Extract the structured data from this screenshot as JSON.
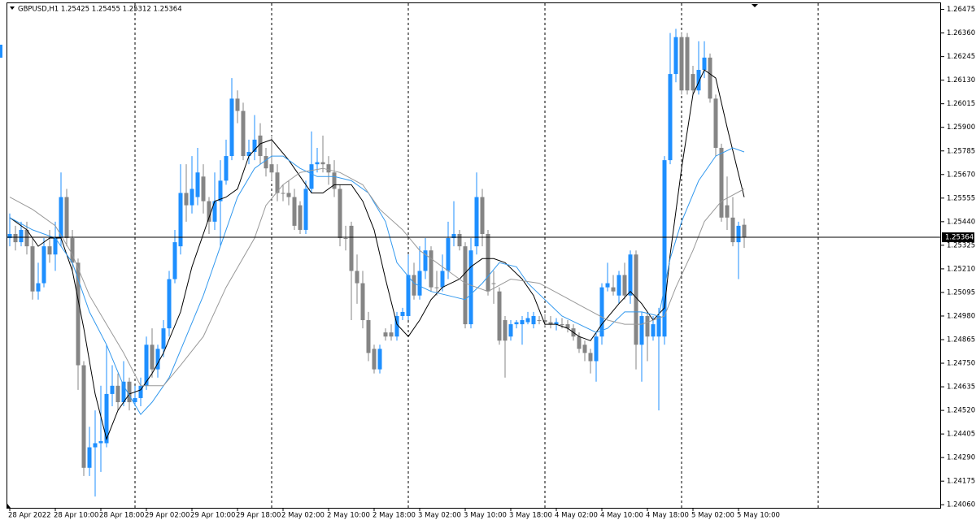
{
  "chart_data": {
    "type": "candlestick",
    "title": "GBPUSD,H1  1.25425 1.25455 1.25312 1.25364",
    "categories": [
      "28 Apr 2022",
      null,
      null,
      null,
      null,
      null,
      null,
      null,
      "28 Apr 10:00",
      null,
      null,
      null,
      null,
      null,
      null,
      null,
      "28 Apr 18:00",
      null,
      null,
      null,
      null,
      null,
      null,
      null,
      "29 Apr 02:00",
      null,
      null,
      null,
      null,
      null,
      null,
      null,
      "29 Apr 10:00",
      null,
      null,
      null,
      null,
      null,
      null,
      null,
      "29 Apr 18:00",
      null,
      null,
      null,
      null,
      null,
      null,
      null,
      "2 May 02:00",
      null,
      null,
      null,
      null,
      null,
      null,
      null,
      "2 May 10:00",
      null,
      null,
      null,
      null,
      null,
      null,
      null,
      "2 May 18:00",
      null,
      null,
      null,
      null,
      null,
      null,
      null,
      "3 May 02:00",
      null,
      null,
      null,
      null,
      null,
      null,
      null,
      "3 May 10:00",
      null,
      null,
      null,
      null,
      null,
      null,
      null,
      "3 May 18:00",
      null,
      null,
      null,
      null,
      null,
      null,
      null,
      "4 May 02:00",
      null,
      null,
      null,
      null,
      null,
      null,
      null,
      "4 May 10:00",
      null,
      null,
      null,
      null,
      null,
      null,
      null,
      "4 May 18:00",
      null,
      null,
      null,
      null,
      null,
      null,
      null,
      "5 May 02:00",
      null,
      null,
      null,
      null,
      null,
      null,
      null,
      "5 May 10:00",
      null
    ],
    "values": [
      [
        1.2536,
        1.2548,
        1.2532,
        1.2538
      ],
      [
        1.2538,
        1.2542,
        1.253,
        1.2534
      ],
      [
        1.2534,
        1.2544,
        1.2532,
        1.254
      ],
      [
        1.254,
        1.2544,
        1.2528,
        1.2532
      ],
      [
        1.2532,
        1.2536,
        1.2506,
        1.251
      ],
      [
        1.251,
        1.2524,
        1.2506,
        1.2514
      ],
      [
        1.2514,
        1.2536,
        1.2512,
        1.2532
      ],
      [
        1.2532,
        1.254,
        1.2524,
        1.2528
      ],
      [
        1.2528,
        1.2544,
        1.252,
        1.2536
      ],
      [
        1.2536,
        1.2568,
        1.2532,
        1.2556
      ],
      [
        1.2556,
        1.256,
        1.2532,
        1.2536
      ],
      [
        1.2536,
        1.254,
        1.252,
        1.2524
      ],
      [
        1.2524,
        1.2526,
        1.2462,
        1.2474
      ],
      [
        1.2474,
        1.2476,
        1.242,
        1.2424
      ],
      [
        1.2424,
        1.2444,
        1.242,
        1.2434
      ],
      [
        1.2434,
        1.2452,
        1.241,
        1.2436
      ],
      [
        1.2436,
        1.2464,
        1.2422,
        1.2437
      ],
      [
        1.2436,
        1.2484,
        1.2434,
        1.246
      ],
      [
        1.246,
        1.2474,
        1.2454,
        1.2464
      ],
      [
        1.2464,
        1.247,
        1.2452,
        1.2456
      ],
      [
        1.2456,
        1.2476,
        1.2454,
        1.2466
      ],
      [
        1.2466,
        1.2468,
        1.2452,
        1.2456
      ],
      [
        1.2456,
        1.2464,
        1.2454,
        1.2458
      ],
      [
        1.2458,
        1.2468,
        1.2454,
        1.2464
      ],
      [
        1.2464,
        1.2488,
        1.2462,
        1.2484
      ],
      [
        1.2484,
        1.2492,
        1.2468,
        1.2472
      ],
      [
        1.2472,
        1.2484,
        1.2468,
        1.2482
      ],
      [
        1.2482,
        1.2496,
        1.2478,
        1.2492
      ],
      [
        1.2492,
        1.252,
        1.2488,
        1.2516
      ],
      [
        1.2516,
        1.254,
        1.2514,
        1.2534
      ],
      [
        1.2532,
        1.2572,
        1.2528,
        1.2558
      ],
      [
        1.2558,
        1.2572,
        1.2544,
        1.2552
      ],
      [
        1.2552,
        1.2576,
        1.2548,
        1.256
      ],
      [
        1.2556,
        1.258,
        1.2552,
        1.2568
      ],
      [
        1.2566,
        1.2572,
        1.2548,
        1.2554
      ],
      [
        1.2554,
        1.2556,
        1.2538,
        1.2544
      ],
      [
        1.2544,
        1.2568,
        1.254,
        1.2554
      ],
      [
        1.2554,
        1.2574,
        1.2532,
        1.2564
      ],
      [
        1.2564,
        1.2584,
        1.2562,
        1.2576
      ],
      [
        1.2576,
        1.2614,
        1.2574,
        1.2604
      ],
      [
        1.2604,
        1.2608,
        1.2592,
        1.2598
      ],
      [
        1.2598,
        1.2602,
        1.2574,
        1.2576
      ],
      [
        1.2576,
        1.2584,
        1.2572,
        1.2578
      ],
      [
        1.2578,
        1.2596,
        1.2574,
        1.2584
      ],
      [
        1.2586,
        1.2592,
        1.2572,
        1.2576
      ],
      [
        1.2576,
        1.258,
        1.2566,
        1.257
      ],
      [
        1.2572,
        1.2586,
        1.2564,
        1.2568
      ],
      [
        1.2568,
        1.2572,
        1.2554,
        1.2558
      ],
      [
        1.2558,
        1.2562,
        1.2554,
        1.2558
      ],
      [
        1.2558,
        1.2564,
        1.2552,
        1.2556
      ],
      [
        1.2556,
        1.256,
        1.254,
        1.2542
      ],
      [
        1.2552,
        1.2554,
        1.2538,
        1.254
      ],
      [
        1.254,
        1.2564,
        1.2538,
        1.256
      ],
      [
        1.256,
        1.2588,
        1.2558,
        1.2572
      ],
      [
        1.2572,
        1.258,
        1.2568,
        1.2573
      ],
      [
        1.2573,
        1.2586,
        1.2568,
        1.2572
      ],
      [
        1.2572,
        1.2576,
        1.2562,
        1.2568
      ],
      [
        1.2568,
        1.2574,
        1.2556,
        1.256
      ],
      [
        1.256,
        1.2562,
        1.2532,
        1.2536
      ],
      [
        1.2536,
        1.2542,
        1.253,
        1.2536
      ],
      [
        1.2542,
        1.2544,
        1.2496,
        1.252
      ],
      [
        1.252,
        1.2528,
        1.2504,
        1.2514
      ],
      [
        1.2514,
        1.252,
        1.2492,
        1.2496
      ],
      [
        1.2496,
        1.25,
        1.2476,
        1.248
      ],
      [
        1.2482,
        1.2484,
        1.247,
        1.2472
      ],
      [
        1.2472,
        1.2484,
        1.247,
        1.2482
      ],
      [
        1.249,
        1.2492,
        1.2486,
        1.2488
      ],
      [
        1.249,
        1.2494,
        1.2486,
        1.2488
      ],
      [
        1.2488,
        1.25,
        1.2486,
        1.2498
      ],
      [
        1.2498,
        1.2502,
        1.2496,
        1.25
      ],
      [
        1.2498,
        1.2528,
        1.2496,
        1.2518
      ],
      [
        1.2518,
        1.2524,
        1.2506,
        1.2508
      ],
      [
        1.2508,
        1.2532,
        1.2506,
        1.252
      ],
      [
        1.252,
        1.2536,
        1.2516,
        1.253
      ],
      [
        1.253,
        1.2532,
        1.251,
        1.2512
      ],
      [
        1.2512,
        1.252,
        1.2508,
        1.2512
      ],
      [
        1.2512,
        1.2528,
        1.251,
        1.252
      ],
      [
        1.252,
        1.2544,
        1.2516,
        1.2536
      ],
      [
        1.2536,
        1.2554,
        1.2532,
        1.2538
      ],
      [
        1.2538,
        1.254,
        1.253,
        1.2532
      ],
      [
        1.2532,
        1.2534,
        1.2492,
        1.2494
      ],
      [
        1.2494,
        1.2536,
        1.2492,
        1.253
      ],
      [
        1.2532,
        1.2568,
        1.2528,
        1.2556
      ],
      [
        1.2556,
        1.256,
        1.2532,
        1.2538
      ],
      [
        1.2538,
        1.254,
        1.2508,
        1.251
      ],
      [
        1.2514,
        1.252,
        1.2504,
        1.2514
      ],
      [
        1.251,
        1.2512,
        1.2484,
        1.2486
      ],
      [
        1.2496,
        1.2498,
        1.2468,
        1.2486
      ],
      [
        1.2488,
        1.2496,
        1.2486,
        1.2494
      ],
      [
        1.2494,
        1.2496,
        1.2492,
        1.2495
      ],
      [
        1.2494,
        1.2498,
        1.2484,
        1.2496
      ],
      [
        1.2495,
        1.25,
        1.2494,
        1.2497
      ],
      [
        1.2494,
        1.25,
        1.2492,
        1.2498
      ],
      [
        1.2496,
        1.2498,
        1.2494,
        1.2496
      ],
      [
        1.2496,
        1.2499,
        1.2493,
        1.2495
      ],
      [
        1.2495,
        1.2498,
        1.2492,
        1.2494
      ],
      [
        1.2494,
        1.2497,
        1.2491,
        1.2495
      ],
      [
        1.2494,
        1.2497,
        1.2492,
        1.2494
      ],
      [
        1.2494,
        1.2496,
        1.249,
        1.2492
      ],
      [
        1.2492,
        1.2494,
        1.2486,
        1.2488
      ],
      [
        1.2488,
        1.249,
        1.248,
        1.2482
      ],
      [
        1.2484,
        1.2486,
        1.2476,
        1.248
      ],
      [
        1.248,
        1.2482,
        1.247,
        1.2476
      ],
      [
        1.2476,
        1.249,
        1.2466,
        1.2488
      ],
      [
        1.2488,
        1.2514,
        1.2484,
        1.2512
      ],
      [
        1.2512,
        1.2524,
        1.251,
        1.2514
      ],
      [
        1.2512,
        1.2518,
        1.2508,
        1.251
      ],
      [
        1.2508,
        1.252,
        1.2504,
        1.2518
      ],
      [
        1.2518,
        1.2524,
        1.2506,
        1.2508
      ],
      [
        1.2508,
        1.253,
        1.2504,
        1.2528
      ],
      [
        1.2528,
        1.253,
        1.2472,
        1.2484
      ],
      [
        1.2484,
        1.25,
        1.2466,
        1.2498
      ],
      [
        1.2498,
        1.25,
        1.2476,
        1.2488
      ],
      [
        1.2488,
        1.2498,
        1.2486,
        1.2494
      ],
      [
        1.2488,
        1.2502,
        1.2452,
        1.2498
      ],
      [
        1.2488,
        1.2576,
        1.2484,
        1.2574
      ],
      [
        1.2574,
        1.2636,
        1.2572,
        1.2616
      ],
      [
        1.2616,
        1.2638,
        1.2612,
        1.2634
      ],
      [
        1.2634,
        1.2636,
        1.2606,
        1.2608
      ],
      [
        1.2634,
        1.2636,
        1.2606,
        1.2608
      ],
      [
        1.2616,
        1.262,
        1.2606,
        1.2608
      ],
      [
        1.2608,
        1.2632,
        1.2606,
        1.2618
      ],
      [
        1.2618,
        1.2632,
        1.2614,
        1.2624
      ],
      [
        1.2624,
        1.2626,
        1.2602,
        1.2604
      ],
      [
        1.2604,
        1.2606,
        1.2576,
        1.258
      ],
      [
        1.258,
        1.2582,
        1.2544,
        1.2546
      ],
      [
        1.2552,
        1.2566,
        1.254,
        1.2546
      ],
      [
        1.2546,
        1.2556,
        1.2532,
        1.2534
      ],
      [
        1.2534,
        1.2544,
        1.2516,
        1.2542
      ],
      [
        1.25425,
        1.25455,
        1.25312,
        1.25364
      ]
    ],
    "bull_color": "#1e8fff",
    "bear_color": "#858585",
    "overlays": [
      {
        "color": "#000000",
        "x": [
          0,
          3,
          5,
          7,
          9,
          11,
          13,
          15,
          17,
          19,
          21,
          23,
          25,
          27,
          30,
          32,
          34,
          36,
          38,
          40,
          42,
          44,
          46,
          49,
          51,
          53,
          55,
          57,
          60,
          62,
          64,
          66,
          68,
          70,
          72,
          74,
          76,
          79,
          81,
          83,
          85,
          87,
          90,
          92,
          94,
          96,
          98,
          100,
          102,
          104,
          107,
          109,
          111,
          113,
          115,
          116,
          118,
          120,
          122,
          124,
          126,
          129
        ],
        "values": [
          1.2546,
          1.254,
          1.2532,
          1.2536,
          1.2536,
          1.252,
          1.2492,
          1.246,
          1.2438,
          1.2452,
          1.246,
          1.2462,
          1.247,
          1.248,
          1.25,
          1.2522,
          1.2538,
          1.2554,
          1.2556,
          1.256,
          1.2576,
          1.2582,
          1.2584,
          1.2574,
          1.2566,
          1.2558,
          1.2558,
          1.2562,
          1.2562,
          1.2554,
          1.254,
          1.2516,
          1.2494,
          1.2488,
          1.2496,
          1.2506,
          1.2512,
          1.2516,
          1.2522,
          1.2526,
          1.2526,
          1.2524,
          1.2516,
          1.2508,
          1.2494,
          1.2494,
          1.2492,
          1.2488,
          1.2486,
          1.2494,
          1.2504,
          1.251,
          1.2504,
          1.2496,
          1.2502,
          1.2528,
          1.257,
          1.2606,
          1.2618,
          1.2614,
          1.259,
          1.2556
        ]
      },
      {
        "color": "#3399ee",
        "x": [
          0,
          4,
          8,
          11,
          14,
          17,
          20,
          23,
          25,
          28,
          31,
          34,
          37,
          40,
          43,
          46,
          48,
          51,
          54,
          57,
          60,
          63,
          66,
          68,
          71,
          74,
          77,
          80,
          83,
          86,
          89,
          91,
          94,
          97,
          100,
          103,
          105,
          108,
          111,
          114,
          116,
          118,
          121,
          124,
          127,
          129
        ],
        "values": [
          1.2546,
          1.254,
          1.2536,
          1.2524,
          1.25,
          1.2484,
          1.2464,
          1.245,
          1.2456,
          1.2468,
          1.2488,
          1.2508,
          1.2532,
          1.2556,
          1.257,
          1.2576,
          1.2576,
          1.257,
          1.2566,
          1.2566,
          1.2564,
          1.2558,
          1.2544,
          1.2524,
          1.2514,
          1.251,
          1.2508,
          1.2506,
          1.2514,
          1.2524,
          1.2522,
          1.2514,
          1.2506,
          1.2498,
          1.2494,
          1.249,
          1.2492,
          1.25,
          1.25,
          1.2498,
          1.2526,
          1.2544,
          1.2564,
          1.2576,
          1.258,
          1.2578
        ]
      },
      {
        "color": "#999999",
        "x": [
          0,
          4,
          8,
          11,
          14,
          17,
          20,
          23,
          27,
          30,
          34,
          38,
          43,
          45,
          48,
          51,
          55,
          58,
          62,
          65,
          69,
          72,
          76,
          80,
          84,
          88,
          93,
          97,
          101,
          105,
          108,
          111,
          115,
          117,
          120,
          122,
          125,
          129
        ],
        "values": [
          1.2556,
          1.255,
          1.2542,
          1.2528,
          1.2508,
          1.2494,
          1.248,
          1.2464,
          1.2464,
          1.2474,
          1.2488,
          1.2512,
          1.2536,
          1.2552,
          1.2562,
          1.2568,
          1.257,
          1.2568,
          1.2562,
          1.255,
          1.254,
          1.253,
          1.2522,
          1.2514,
          1.251,
          1.2516,
          1.2514,
          1.2508,
          1.2502,
          1.2496,
          1.2494,
          1.2494,
          1.2498,
          1.2512,
          1.253,
          1.2544,
          1.2554,
          1.256
        ]
      }
    ],
    "last_price": 1.25364,
    "ylim": [
      1.24045,
      1.26505
    ],
    "yticks": [
      1.26475,
      {
        "value": 1.2636,
        "label": "1.26360"
      },
      1.26245,
      {
        "value": 1.2613,
        "label": "1.26130"
      },
      1.26015,
      {
        "value": 1.259,
        "label": "1.25900"
      },
      1.25785,
      {
        "value": 1.2567,
        "label": "1.25670"
      },
      1.25555,
      {
        "value": 1.2544,
        "label": "1.25440"
      },
      1.25325,
      {
        "value": 1.2521,
        "label": "1.25210"
      },
      1.25095,
      {
        "value": 1.2498,
        "label": "1.24980"
      },
      1.24865,
      {
        "value": 1.2475,
        "label": "1.24750"
      },
      1.24635,
      {
        "value": 1.2452,
        "label": "1.24520"
      },
      1.24405,
      {
        "value": 1.2429,
        "label": "1.24290"
      },
      1.24175,
      {
        "value": 1.2406,
        "label": "1.24060"
      }
    ],
    "grid": false
  }
}
